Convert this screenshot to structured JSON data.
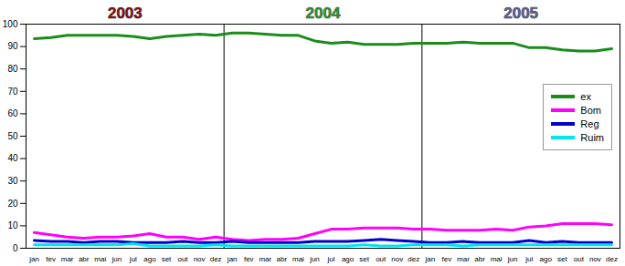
{
  "chart_data": {
    "type": "line",
    "annotations": [
      "2003",
      "2004",
      "2005"
    ],
    "categories": [
      "jan",
      "fev",
      "mar",
      "abr",
      "mai",
      "jun",
      "jul",
      "ago",
      "set",
      "out",
      "nov",
      "dez",
      "jan",
      "fev",
      "mar",
      "abr",
      "mai",
      "jun",
      "jul",
      "ago",
      "set",
      "out",
      "nov",
      "dez",
      "jan",
      "fev",
      "mar",
      "abr",
      "mai",
      "jun",
      "jul",
      "ago",
      "set",
      "out",
      "nov",
      "dez"
    ],
    "series": [
      {
        "name": "ex",
        "color": "#1a8c1a",
        "values": [
          93.5,
          94,
          95,
          95,
          95,
          95,
          94.5,
          93.5,
          94.5,
          95,
          95.5,
          95,
          96,
          96,
          95.5,
          95,
          95,
          92.5,
          91.5,
          92,
          91,
          91,
          91,
          91.5,
          91.5,
          91.5,
          92,
          91.5,
          91.5,
          91.5,
          89.5,
          89.5,
          88.5,
          88,
          88,
          89
        ]
      },
      {
        "name": "Bom",
        "color": "#ff00ff",
        "values": [
          7,
          6,
          5,
          4.5,
          5,
          5,
          5.5,
          6.5,
          5,
          5,
          4,
          5,
          4,
          3.5,
          4,
          4,
          4.5,
          6.5,
          8.5,
          8.5,
          9,
          9,
          9,
          8.5,
          8.5,
          8,
          8,
          8,
          8.5,
          8,
          9.5,
          10,
          11,
          11,
          11,
          10.5
        ]
      },
      {
        "name": "Reg",
        "color": "#0000cc",
        "values": [
          3.5,
          3,
          3,
          2.5,
          3,
          3,
          2.5,
          2.5,
          2.5,
          3,
          2.5,
          2.5,
          3,
          2.5,
          2.5,
          2.5,
          2.5,
          3,
          3,
          3,
          3.5,
          4,
          3.5,
          3,
          2.5,
          2.5,
          3,
          2.5,
          2.5,
          2.5,
          3.5,
          2.5,
          3,
          2.5,
          2.5,
          2.5
        ]
      },
      {
        "name": "Ruim",
        "color": "#00e5ee",
        "values": [
          1.5,
          1.5,
          1.5,
          1.5,
          1.5,
          1.5,
          2,
          1,
          1,
          1,
          1,
          1.5,
          1,
          1,
          1,
          1,
          1,
          1,
          1,
          1,
          1.5,
          1,
          1,
          1.5,
          1.5,
          1.5,
          1,
          1.5,
          1.5,
          1.5,
          1.5,
          1.5,
          1.5,
          1.5,
          1.5,
          1.5
        ]
      }
    ],
    "ylim": [
      0,
      100
    ],
    "yticks": [
      0,
      10,
      20,
      30,
      40,
      50,
      60,
      70,
      80,
      90,
      100
    ],
    "grid": false,
    "legend": "right"
  }
}
